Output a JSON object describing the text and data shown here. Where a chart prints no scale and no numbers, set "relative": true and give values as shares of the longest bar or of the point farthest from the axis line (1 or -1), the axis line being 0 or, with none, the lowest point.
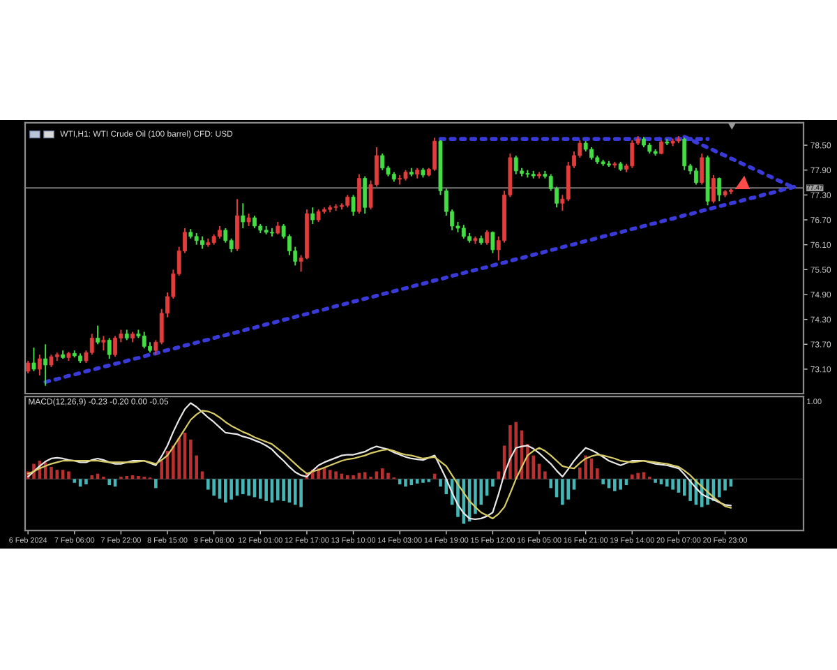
{
  "chart_data": [
    {
      "type": "candlestick",
      "title": "WTI,H1: WTI Crude Oil (100 barrel) CFD: USD",
      "categories": [
        null,
        null,
        null,
        null,
        null,
        null,
        null,
        null,
        null,
        null,
        null,
        null,
        null,
        null,
        null,
        null,
        null,
        null,
        null,
        null,
        null,
        null,
        null,
        null,
        null,
        null,
        null,
        null,
        null,
        null,
        null,
        null,
        null,
        null,
        null,
        null,
        null,
        null,
        null,
        null,
        null,
        null,
        null,
        null,
        null,
        null,
        null,
        null,
        null,
        null,
        null,
        null,
        null,
        null,
        null,
        null,
        null,
        null,
        null,
        null,
        null,
        null,
        null,
        null,
        null,
        null,
        null,
        null,
        null,
        null,
        null,
        null,
        null,
        null,
        null,
        null,
        null,
        null,
        null,
        null,
        null,
        null,
        null,
        null,
        null,
        null,
        null,
        null,
        null,
        null,
        null,
        null,
        null,
        null,
        null,
        null,
        null,
        null,
        null,
        null,
        null,
        null,
        null,
        null,
        null,
        null,
        null,
        null,
        null,
        null,
        null,
        null,
        null,
        null,
        null,
        null,
        null,
        null,
        null,
        null,
        null,
        null,
        null,
        null,
        null,
        null,
        null,
        null,
        null,
        null,
        null,
        null,
        null,
        null
      ],
      "ohlc": [
        [
          73.05,
          73.3,
          73.0,
          73.25
        ],
        [
          73.25,
          73.62,
          73.05,
          73.1
        ],
        [
          73.1,
          73.45,
          72.95,
          73.35
        ],
        [
          73.35,
          73.7,
          72.7,
          73.2
        ],
        [
          73.2,
          73.45,
          73.15,
          73.4
        ],
        [
          73.4,
          73.5,
          73.3,
          73.45
        ],
        [
          73.45,
          73.55,
          73.35,
          73.38
        ],
        [
          73.38,
          73.52,
          73.3,
          73.48
        ],
        [
          73.48,
          73.55,
          73.38,
          73.42
        ],
        [
          73.42,
          73.48,
          73.25,
          73.3
        ],
        [
          73.3,
          73.55,
          73.25,
          73.5
        ],
        [
          73.5,
          73.95,
          73.45,
          73.85
        ],
        [
          73.85,
          74.15,
          73.7,
          73.75
        ],
        [
          73.75,
          73.9,
          73.55,
          73.8
        ],
        [
          73.8,
          73.85,
          73.35,
          73.45
        ],
        [
          73.45,
          73.9,
          73.4,
          73.85
        ],
        [
          73.85,
          74.05,
          73.75,
          73.95
        ],
        [
          73.95,
          74.05,
          73.8,
          73.85
        ],
        [
          73.85,
          74.0,
          73.75,
          73.95
        ],
        [
          73.95,
          74.05,
          73.85,
          73.9
        ],
        [
          73.9,
          74.0,
          73.6,
          73.65
        ],
        [
          73.65,
          73.75,
          73.5,
          73.55
        ],
        [
          73.55,
          73.8,
          73.45,
          73.75
        ],
        [
          73.75,
          74.55,
          73.7,
          74.45
        ],
        [
          74.45,
          74.95,
          74.35,
          74.85
        ],
        [
          74.85,
          75.5,
          74.8,
          75.4
        ],
        [
          75.4,
          76.05,
          75.35,
          75.95
        ],
        [
          75.95,
          76.5,
          75.9,
          76.4
        ],
        [
          76.4,
          76.48,
          76.25,
          76.3
        ],
        [
          76.3,
          76.38,
          76.1,
          76.2
        ],
        [
          76.2,
          76.3,
          76.0,
          76.1
        ],
        [
          76.1,
          76.25,
          76.05,
          76.15
        ],
        [
          76.15,
          76.35,
          76.1,
          76.3
        ],
        [
          76.3,
          76.55,
          76.25,
          76.45
        ],
        [
          76.45,
          76.5,
          76.15,
          76.2
        ],
        [
          76.2,
          76.25,
          75.92,
          76.0
        ],
        [
          76.0,
          77.2,
          75.95,
          76.8
        ],
        [
          76.8,
          77.1,
          76.5,
          76.65
        ],
        [
          76.65,
          76.85,
          76.55,
          76.75
        ],
        [
          76.75,
          76.8,
          76.5,
          76.55
        ],
        [
          76.55,
          76.6,
          76.38,
          76.45
        ],
        [
          76.45,
          76.55,
          76.35,
          76.4
        ],
        [
          76.4,
          76.5,
          76.3,
          76.38
        ],
        [
          76.38,
          76.65,
          76.35,
          76.55
        ],
        [
          76.55,
          76.6,
          76.25,
          76.3
        ],
        [
          76.3,
          76.35,
          75.85,
          75.95
        ],
        [
          75.95,
          76.05,
          75.6,
          75.7
        ],
        [
          75.7,
          75.85,
          75.45,
          75.78
        ],
        [
          75.78,
          76.95,
          75.75,
          76.85
        ],
        [
          76.85,
          77.0,
          76.6,
          76.7
        ],
        [
          76.7,
          76.95,
          76.65,
          76.9
        ],
        [
          76.9,
          77.0,
          76.85,
          76.95
        ],
        [
          76.95,
          77.05,
          76.88,
          77.0
        ],
        [
          77.0,
          77.08,
          76.92,
          77.02
        ],
        [
          77.02,
          77.1,
          76.95,
          77.05
        ],
        [
          77.05,
          77.3,
          77.0,
          77.25
        ],
        [
          77.25,
          77.3,
          76.8,
          76.9
        ],
        [
          76.9,
          77.8,
          76.85,
          77.7
        ],
        [
          77.7,
          77.75,
          76.85,
          77.0
        ],
        [
          77.0,
          77.65,
          76.95,
          77.55
        ],
        [
          77.55,
          78.45,
          77.5,
          78.25
        ],
        [
          78.25,
          78.3,
          77.9,
          77.95
        ],
        [
          77.95,
          78.0,
          77.75,
          77.8
        ],
        [
          77.8,
          77.85,
          77.62,
          77.68
        ],
        [
          77.68,
          77.78,
          77.55,
          77.7
        ],
        [
          77.7,
          77.9,
          77.65,
          77.85
        ],
        [
          77.85,
          77.95,
          77.75,
          77.8
        ],
        [
          77.8,
          77.95,
          77.7,
          77.9
        ],
        [
          77.9,
          77.95,
          77.72,
          77.78
        ],
        [
          77.78,
          77.95,
          77.75,
          77.92
        ],
        [
          77.92,
          78.68,
          77.88,
          78.6
        ],
        [
          78.6,
          78.62,
          77.3,
          77.4
        ],
        [
          77.4,
          77.45,
          76.8,
          76.9
        ],
        [
          76.9,
          76.95,
          76.45,
          76.55
        ],
        [
          76.55,
          76.65,
          76.4,
          76.5
        ],
        [
          76.5,
          76.58,
          76.25,
          76.3
        ],
        [
          76.3,
          76.38,
          76.15,
          76.2
        ],
        [
          76.2,
          76.3,
          76.12,
          76.25
        ],
        [
          76.25,
          76.32,
          76.1,
          76.15
        ],
        [
          76.15,
          76.45,
          76.1,
          76.4
        ],
        [
          76.4,
          76.42,
          75.9,
          75.98
        ],
        [
          75.98,
          76.3,
          75.72,
          76.2
        ],
        [
          76.2,
          77.4,
          76.15,
          77.3
        ],
        [
          77.3,
          78.3,
          77.25,
          78.2
        ],
        [
          78.2,
          78.25,
          77.8,
          77.88
        ],
        [
          77.88,
          77.95,
          77.75,
          77.82
        ],
        [
          77.82,
          77.9,
          77.72,
          77.8
        ],
        [
          77.8,
          77.88,
          77.7,
          77.76
        ],
        [
          77.76,
          77.85,
          77.7,
          77.8
        ],
        [
          77.8,
          77.88,
          77.7,
          77.75
        ],
        [
          77.75,
          77.8,
          77.4,
          77.45
        ],
        [
          77.45,
          77.5,
          77.0,
          77.1
        ],
        [
          77.1,
          77.3,
          76.92,
          77.2
        ],
        [
          77.2,
          78.1,
          77.15,
          78.0
        ],
        [
          78.0,
          78.35,
          77.95,
          78.25
        ],
        [
          78.25,
          78.62,
          78.2,
          78.55
        ],
        [
          78.55,
          78.6,
          78.35,
          78.4
        ],
        [
          78.4,
          78.45,
          78.15,
          78.2
        ],
        [
          78.2,
          78.25,
          78.05,
          78.1
        ],
        [
          78.1,
          78.15,
          78.0,
          78.05
        ],
        [
          78.05,
          78.12,
          77.98,
          78.02
        ],
        [
          78.02,
          78.1,
          77.95,
          78.05
        ],
        [
          78.05,
          78.1,
          77.88,
          77.92
        ],
        [
          77.92,
          78.05,
          77.85,
          78.0
        ],
        [
          78.0,
          78.62,
          77.95,
          78.55
        ],
        [
          78.55,
          78.72,
          78.5,
          78.65
        ],
        [
          78.65,
          78.7,
          78.45,
          78.5
        ],
        [
          78.5,
          78.55,
          78.3,
          78.35
        ],
        [
          78.35,
          78.4,
          78.25,
          78.3
        ],
        [
          78.3,
          78.62,
          78.28,
          78.58
        ],
        [
          78.58,
          78.65,
          78.5,
          78.55
        ],
        [
          78.55,
          78.66,
          78.48,
          78.6
        ],
        [
          78.6,
          78.72,
          78.55,
          78.65
        ],
        [
          78.65,
          78.68,
          77.9,
          78.0
        ],
        [
          78.0,
          78.05,
          77.8,
          77.88
        ],
        [
          77.88,
          77.95,
          77.55,
          77.6
        ],
        [
          77.6,
          78.3,
          77.55,
          78.2
        ],
        [
          78.2,
          78.25,
          77.05,
          77.15
        ],
        [
          77.15,
          77.78,
          77.1,
          77.7
        ],
        [
          77.7,
          77.72,
          77.15,
          77.3
        ],
        [
          77.3,
          77.42,
          77.25,
          77.38
        ],
        [
          77.38,
          77.45,
          77.32,
          77.42
        ],
        null,
        null,
        null,
        null,
        null,
        null,
        null,
        null,
        null,
        null,
        null,
        null
      ],
      "colors": [
        "#e23c3c",
        "#44dd44",
        "#e23c3c",
        "#44dd44",
        "#e23c3c",
        "#e23c3c",
        "#44dd44",
        "#e23c3c",
        "#44dd44",
        "#44dd44",
        "#e23c3c",
        "#e23c3c",
        "#44dd44",
        "#e23c3c",
        "#44dd44",
        "#e23c3c",
        "#e23c3c",
        "#44dd44",
        "#e23c3c",
        "#44dd44",
        "#44dd44",
        "#44dd44",
        "#e23c3c",
        "#e23c3c",
        "#e23c3c",
        "#e23c3c",
        "#e23c3c",
        "#e23c3c",
        "#44dd44",
        "#44dd44",
        "#44dd44",
        "#e23c3c",
        "#e23c3c",
        "#e23c3c",
        "#44dd44",
        "#44dd44",
        "#e23c3c",
        "#44dd44",
        "#e23c3c",
        "#44dd44",
        "#44dd44",
        "#44dd44",
        "#44dd44",
        "#e23c3c",
        "#44dd44",
        "#44dd44",
        "#44dd44",
        "#e23c3c",
        "#e23c3c",
        "#44dd44",
        "#e23c3c",
        "#e23c3c",
        "#e23c3c",
        "#e23c3c",
        "#e23c3c",
        "#e23c3c",
        "#44dd44",
        "#e23c3c",
        "#44dd44",
        "#e23c3c",
        "#e23c3c",
        "#44dd44",
        "#44dd44",
        "#44dd44",
        "#e23c3c",
        "#e23c3c",
        "#44dd44",
        "#e23c3c",
        "#44dd44",
        "#e23c3c",
        "#e23c3c",
        "#44dd44",
        "#44dd44",
        "#44dd44",
        "#44dd44",
        "#44dd44",
        "#44dd44",
        "#e23c3c",
        "#44dd44",
        "#e23c3c",
        "#44dd44",
        "#e23c3c",
        "#e23c3c",
        "#e23c3c",
        "#44dd44",
        "#44dd44",
        "#44dd44",
        "#44dd44",
        "#e23c3c",
        "#44dd44",
        "#44dd44",
        "#44dd44",
        "#e23c3c",
        "#e23c3c",
        "#e23c3c",
        "#e23c3c",
        "#44dd44",
        "#44dd44",
        "#44dd44",
        "#44dd44",
        "#44dd44",
        "#e23c3c",
        "#44dd44",
        "#e23c3c",
        "#e23c3c",
        "#e23c3c",
        "#44dd44",
        "#44dd44",
        "#44dd44",
        "#e23c3c",
        "#44dd44",
        "#e23c3c",
        "#e23c3c",
        "#44dd44",
        "#44dd44",
        "#44dd44",
        "#e23c3c",
        "#44dd44",
        "#e23c3c",
        "#44dd44",
        "#e23c3c",
        "#e23c3c",
        null,
        null,
        null,
        null,
        null,
        null,
        null,
        null,
        null,
        null,
        null,
        null
      ],
      "series": [
        {
          "type": "line",
          "color": "#3a3ad8",
          "line_style": "dotted",
          "values": [
            null,
            null,
            null,
            72.79,
            72.83,
            72.86,
            72.9,
            72.94,
            72.97,
            73.01,
            73.05,
            73.08,
            73.12,
            73.16,
            73.19,
            73.23,
            73.26,
            73.3,
            73.34,
            73.37,
            73.41,
            73.45,
            73.48,
            73.52,
            73.56,
            73.59,
            73.63,
            73.67,
            73.7,
            73.74,
            73.78,
            73.81,
            73.85,
            73.89,
            73.92,
            73.96,
            73.99,
            74.03,
            74.07,
            74.1,
            74.14,
            74.18,
            74.21,
            74.25,
            74.29,
            74.32,
            74.36,
            74.4,
            74.43,
            74.47,
            74.51,
            74.54,
            74.58,
            74.62,
            74.65,
            74.69,
            74.73,
            74.76,
            74.8,
            74.83,
            74.87,
            74.91,
            74.94,
            74.98,
            75.02,
            75.05,
            75.09,
            75.13,
            75.16,
            75.2,
            75.24,
            75.27,
            75.31,
            75.35,
            75.38,
            75.42,
            75.46,
            75.49,
            75.53,
            75.56,
            75.6,
            75.64,
            75.67,
            75.71,
            75.75,
            75.78,
            75.82,
            75.86,
            75.89,
            75.93,
            75.97,
            76.0,
            76.04,
            76.08,
            76.11,
            76.15,
            76.19,
            76.22,
            76.26,
            76.3,
            76.33,
            76.37,
            76.4,
            76.44,
            76.48,
            76.51,
            76.55,
            76.59,
            76.62,
            76.66,
            76.7,
            76.73,
            76.77,
            76.81,
            76.84,
            76.88,
            76.92,
            76.95,
            76.99,
            77.03,
            77.06,
            77.1,
            77.13,
            77.17,
            77.21,
            77.24,
            77.28,
            77.32,
            77.35,
            77.39,
            77.43,
            77.46,
            77.5,
            null
          ]
        },
        {
          "type": "line",
          "color": "#3a3ad8",
          "line_style": "dotted",
          "values": [
            null,
            null,
            null,
            null,
            null,
            null,
            null,
            null,
            null,
            null,
            null,
            null,
            null,
            null,
            null,
            null,
            null,
            null,
            null,
            null,
            null,
            null,
            null,
            null,
            null,
            null,
            null,
            null,
            null,
            null,
            null,
            null,
            null,
            null,
            null,
            null,
            null,
            null,
            null,
            null,
            null,
            null,
            null,
            null,
            null,
            null,
            null,
            null,
            null,
            null,
            null,
            null,
            null,
            null,
            null,
            null,
            null,
            null,
            null,
            null,
            null,
            null,
            null,
            null,
            null,
            null,
            null,
            null,
            null,
            null,
            null,
            78.65,
            78.65,
            78.65,
            78.65,
            78.65,
            78.65,
            78.65,
            78.65,
            78.65,
            78.65,
            78.65,
            78.65,
            78.65,
            78.65,
            78.65,
            78.65,
            78.65,
            78.65,
            78.65,
            78.65,
            78.65,
            78.65,
            78.65,
            78.65,
            78.65,
            78.65,
            78.65,
            78.65,
            78.65,
            78.65,
            78.65,
            78.65,
            78.65,
            78.65,
            78.65,
            78.65,
            78.65,
            78.65,
            78.65,
            78.65,
            78.65,
            78.65,
            78.65,
            78.65,
            78.65,
            78.65,
            78.65,
            null,
            null,
            null,
            null,
            null,
            null,
            null,
            null,
            null,
            null,
            null,
            null,
            null,
            null,
            null,
            null
          ]
        },
        {
          "type": "line",
          "color": "#3a3ad8",
          "line_style": "dotted",
          "values": [
            null,
            null,
            null,
            null,
            null,
            null,
            null,
            null,
            null,
            null,
            null,
            null,
            null,
            null,
            null,
            null,
            null,
            null,
            null,
            null,
            null,
            null,
            null,
            null,
            null,
            null,
            null,
            null,
            null,
            null,
            null,
            null,
            null,
            null,
            null,
            null,
            null,
            null,
            null,
            null,
            null,
            null,
            null,
            null,
            null,
            null,
            null,
            null,
            null,
            null,
            null,
            null,
            null,
            null,
            null,
            null,
            null,
            null,
            null,
            null,
            null,
            null,
            null,
            null,
            null,
            null,
            null,
            null,
            null,
            null,
            null,
            null,
            null,
            null,
            null,
            null,
            null,
            null,
            null,
            null,
            null,
            null,
            null,
            null,
            null,
            null,
            null,
            null,
            null,
            null,
            null,
            null,
            null,
            null,
            null,
            null,
            null,
            null,
            null,
            null,
            null,
            null,
            null,
            null,
            null,
            null,
            null,
            null,
            null,
            null,
            null,
            null,
            null,
            78.7,
            78.64,
            78.57,
            78.51,
            78.44,
            78.38,
            78.31,
            78.25,
            78.18,
            78.12,
            78.05,
            77.99,
            77.92,
            77.86,
            77.79,
            77.73,
            77.66,
            77.6,
            77.53,
            77.47,
            null
          ]
        }
      ],
      "ref_lines": [
        {
          "axis": "y",
          "value": 77.47,
          "label": "77.47",
          "color": "#a0a0a0"
        }
      ],
      "ylim": [
        72.51,
        79.04
      ],
      "yticks": [
        {
          "value": 73.1,
          "label": "73.10"
        },
        {
          "value": 73.7,
          "label": "73.70"
        },
        {
          "value": 74.3,
          "label": "74.30"
        },
        {
          "value": 74.9,
          "label": "74.90"
        },
        {
          "value": 75.5,
          "label": "75.50"
        },
        {
          "value": 76.1,
          "label": "76.10"
        },
        {
          "value": 76.7,
          "label": "76.70"
        },
        {
          "value": 77.3,
          "label": "77.30"
        },
        {
          "value": 77.9,
          "label": "77.90"
        },
        {
          "value": 78.5,
          "label": "78.50"
        }
      ],
      "tick_labels": "y"
    },
    {
      "type": "bar",
      "title": "MACD(12,26,9) -0.23 -0.20 0.00 -0.05",
      "relative": true,
      "categories": [
        "6 Feb 2024",
        null,
        null,
        null,
        null,
        null,
        null,
        null,
        "7 Feb 06:00",
        null,
        null,
        null,
        null,
        null,
        null,
        null,
        "7 Feb 22:00",
        null,
        null,
        null,
        null,
        null,
        null,
        null,
        "8 Feb 15:00",
        null,
        null,
        null,
        null,
        null,
        null,
        null,
        "9 Feb 08:00",
        null,
        null,
        null,
        null,
        null,
        null,
        null,
        "12 Feb 01:00",
        null,
        null,
        null,
        null,
        null,
        null,
        null,
        "12 Feb 17:00",
        null,
        null,
        null,
        null,
        null,
        null,
        null,
        "13 Feb 10:00",
        null,
        null,
        null,
        null,
        null,
        null,
        null,
        "14 Feb 03:00",
        null,
        null,
        null,
        null,
        null,
        null,
        null,
        "14 Feb 19:00",
        null,
        null,
        null,
        null,
        null,
        null,
        null,
        "15 Feb 12:00",
        null,
        null,
        null,
        null,
        null,
        null,
        null,
        "16 Feb 05:00",
        null,
        null,
        null,
        null,
        null,
        null,
        null,
        "16 Feb 21:00",
        null,
        null,
        null,
        null,
        null,
        null,
        null,
        "19 Feb 14:00",
        null,
        null,
        null,
        null,
        null,
        null,
        null,
        "20 Feb 07:00",
        null,
        null,
        null,
        null,
        null,
        null,
        null,
        "20 Feb 23:00",
        null,
        null,
        null,
        null,
        null,
        null,
        null,
        null,
        null,
        null,
        null,
        null,
        null
      ],
      "series": [
        {
          "type": "bar",
          "values": [
            0.1,
            0.2,
            0.24,
            0.22,
            0.16,
            0.12,
            0.12,
            0.1,
            -0.05,
            -0.1,
            -0.07,
            0.05,
            0.07,
            0.03,
            -0.08,
            -0.1,
            0.03,
            0.04,
            0.05,
            0.04,
            0.03,
            0.02,
            -0.12,
            0.24,
            0.37,
            0.44,
            0.54,
            0.61,
            0.52,
            0.31,
            0.1,
            -0.14,
            -0.22,
            -0.26,
            -0.31,
            -0.27,
            -0.22,
            -0.2,
            -0.22,
            -0.24,
            -0.26,
            -0.29,
            -0.31,
            -0.28,
            -0.29,
            -0.31,
            -0.34,
            -0.37,
            0.07,
            0.12,
            0.14,
            0.15,
            0.12,
            0.1,
            0.07,
            0.05,
            0.05,
            0.08,
            0.09,
            0.03,
            0.1,
            0.14,
            0.08,
            0.02,
            -0.07,
            -0.1,
            -0.08,
            -0.06,
            -0.05,
            -0.04,
            0.07,
            -0.1,
            -0.2,
            -0.34,
            -0.5,
            -0.59,
            -0.56,
            -0.46,
            -0.34,
            -0.22,
            -0.1,
            0.1,
            0.44,
            0.71,
            0.75,
            0.64,
            0.46,
            0.31,
            0.2,
            0.1,
            -0.12,
            -0.24,
            -0.34,
            -0.27,
            -0.14,
            0.15,
            0.31,
            0.27,
            0.14,
            -0.07,
            -0.12,
            -0.16,
            -0.14,
            -0.08,
            0.06,
            0.08,
            0.09,
            0.03,
            -0.05,
            -0.07,
            -0.1,
            -0.14,
            -0.18,
            -0.22,
            -0.29,
            -0.34,
            -0.37,
            -0.34,
            -0.29,
            -0.24,
            -0.15,
            -0.1,
            null,
            null,
            null,
            null,
            null,
            null,
            null,
            null,
            null,
            null,
            null,
            null
          ],
          "colors": [
            "#b83030",
            "#b83030",
            "#b83030",
            "#b83030",
            "#b83030",
            "#b83030",
            "#b83030",
            "#b83030",
            "#45b5b5",
            "#45b5b5",
            "#45b5b5",
            "#b83030",
            "#b83030",
            "#b83030",
            "#45b5b5",
            "#45b5b5",
            "#b83030",
            "#b83030",
            "#b83030",
            "#b83030",
            "#b83030",
            "#b83030",
            "#45b5b5",
            "#b83030",
            "#b83030",
            "#b83030",
            "#b83030",
            "#b83030",
            "#b83030",
            "#b83030",
            "#b83030",
            "#45b5b5",
            "#45b5b5",
            "#45b5b5",
            "#45b5b5",
            "#45b5b5",
            "#45b5b5",
            "#45b5b5",
            "#45b5b5",
            "#45b5b5",
            "#45b5b5",
            "#45b5b5",
            "#45b5b5",
            "#45b5b5",
            "#45b5b5",
            "#45b5b5",
            "#45b5b5",
            "#45b5b5",
            "#b83030",
            "#b83030",
            "#b83030",
            "#b83030",
            "#b83030",
            "#b83030",
            "#b83030",
            "#b83030",
            "#b83030",
            "#b83030",
            "#b83030",
            "#b83030",
            "#b83030",
            "#b83030",
            "#b83030",
            "#b83030",
            "#45b5b5",
            "#45b5b5",
            "#45b5b5",
            "#45b5b5",
            "#45b5b5",
            "#45b5b5",
            "#b83030",
            "#45b5b5",
            "#45b5b5",
            "#45b5b5",
            "#45b5b5",
            "#45b5b5",
            "#45b5b5",
            "#45b5b5",
            "#45b5b5",
            "#45b5b5",
            "#45b5b5",
            "#b83030",
            "#b83030",
            "#b83030",
            "#b83030",
            "#b83030",
            "#b83030",
            "#b83030",
            "#b83030",
            "#b83030",
            "#45b5b5",
            "#45b5b5",
            "#45b5b5",
            "#45b5b5",
            "#45b5b5",
            "#b83030",
            "#b83030",
            "#b83030",
            "#b83030",
            "#45b5b5",
            "#45b5b5",
            "#45b5b5",
            "#45b5b5",
            "#45b5b5",
            "#b83030",
            "#b83030",
            "#b83030",
            "#b83030",
            "#45b5b5",
            "#45b5b5",
            "#45b5b5",
            "#45b5b5",
            "#45b5b5",
            "#45b5b5",
            "#45b5b5",
            "#45b5b5",
            "#45b5b5",
            "#45b5b5",
            "#45b5b5",
            "#45b5b5",
            "#45b5b5",
            "#45b5b5",
            null,
            null,
            null,
            null,
            null,
            null,
            null,
            null,
            null,
            null,
            null,
            null
          ]
        },
        {
          "type": "line",
          "color": "#e8e8e8",
          "values": [
            0.03,
            0.1,
            0.17,
            0.23,
            0.27,
            0.28,
            0.27,
            0.25,
            0.24,
            0.22,
            0.22,
            0.25,
            0.27,
            0.25,
            0.22,
            0.2,
            0.2,
            0.22,
            0.24,
            0.24,
            0.24,
            0.21,
            0.18,
            0.3,
            0.44,
            0.62,
            0.78,
            0.92,
            1.0,
            0.95,
            0.88,
            0.81,
            0.75,
            0.68,
            0.61,
            0.6,
            0.59,
            0.56,
            0.54,
            0.51,
            0.48,
            0.44,
            0.39,
            0.31,
            0.24,
            0.16,
            0.09,
            0.05,
            0.03,
            0.11,
            0.18,
            0.22,
            0.25,
            0.28,
            0.31,
            0.32,
            0.32,
            0.34,
            0.36,
            0.4,
            0.43,
            0.41,
            0.39,
            0.35,
            0.32,
            0.29,
            0.27,
            0.26,
            0.25,
            0.28,
            0.31,
            0.16,
            0.0,
            -0.18,
            -0.34,
            -0.45,
            -0.52,
            -0.53,
            -0.52,
            -0.49,
            -0.44,
            -0.2,
            0.07,
            0.27,
            0.41,
            0.43,
            0.44,
            0.4,
            0.34,
            0.27,
            0.2,
            0.11,
            0.03,
            0.13,
            0.24,
            0.33,
            0.41,
            0.38,
            0.34,
            0.29,
            0.24,
            0.21,
            0.18,
            0.21,
            0.24,
            0.24,
            0.24,
            0.22,
            0.2,
            0.19,
            0.18,
            0.16,
            0.14,
            0.06,
            -0.03,
            -0.12,
            -0.2,
            -0.24,
            -0.27,
            -0.31,
            -0.34,
            -0.35,
            null,
            null,
            null,
            null,
            null,
            null,
            null,
            null,
            null,
            null,
            null,
            null
          ]
        },
        {
          "type": "line",
          "color": "#d8cc66",
          "values": [
            0.07,
            0.1,
            0.14,
            0.17,
            0.2,
            0.22,
            0.24,
            0.24,
            0.24,
            0.24,
            0.24,
            0.24,
            0.24,
            0.23,
            0.22,
            0.22,
            0.22,
            0.22,
            0.22,
            0.23,
            0.24,
            0.22,
            0.2,
            0.25,
            0.31,
            0.42,
            0.54,
            0.66,
            0.78,
            0.85,
            0.9,
            0.89,
            0.86,
            0.81,
            0.75,
            0.7,
            0.66,
            0.62,
            0.59,
            0.55,
            0.52,
            0.49,
            0.46,
            0.4,
            0.34,
            0.27,
            0.2,
            0.13,
            0.07,
            0.1,
            0.12,
            0.15,
            0.18,
            0.21,
            0.24,
            0.26,
            0.27,
            0.29,
            0.31,
            0.34,
            0.36,
            0.38,
            0.39,
            0.37,
            0.34,
            0.32,
            0.31,
            0.29,
            0.27,
            0.28,
            0.29,
            0.23,
            0.17,
            0.05,
            -0.07,
            -0.18,
            -0.29,
            -0.37,
            -0.44,
            -0.48,
            -0.52,
            -0.46,
            -0.37,
            -0.19,
            0.0,
            0.16,
            0.31,
            0.37,
            0.41,
            0.37,
            0.31,
            0.24,
            0.17,
            0.15,
            0.14,
            0.21,
            0.27,
            0.3,
            0.32,
            0.31,
            0.29,
            0.27,
            0.24,
            0.23,
            0.22,
            0.23,
            0.24,
            0.23,
            0.22,
            0.21,
            0.2,
            0.18,
            0.16,
            0.11,
            0.05,
            -0.03,
            -0.1,
            -0.17,
            -0.24,
            -0.3,
            -0.36,
            -0.38,
            null,
            null,
            null,
            null,
            null,
            null,
            null,
            null,
            null,
            null,
            null,
            null
          ]
        }
      ],
      "annotations": [
        "1.00"
      ],
      "tick_labels": "x"
    }
  ]
}
